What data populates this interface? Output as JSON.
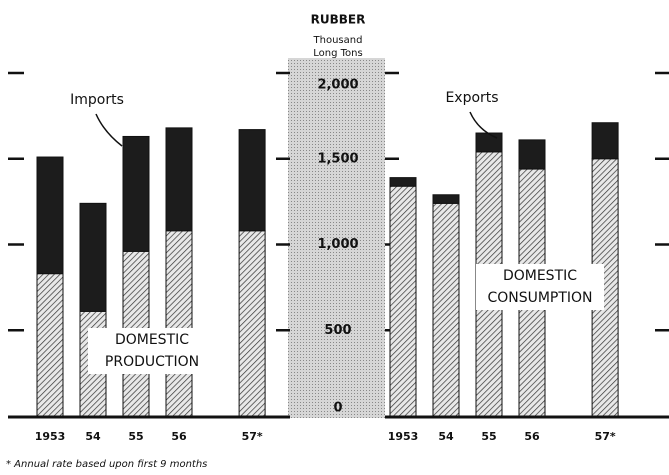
{
  "chart_data": [
    {
      "type": "bar",
      "stacked": true,
      "title": "RUBBER",
      "y_label": [
        "Thousand",
        "Long Tons"
      ],
      "categories": [
        "1953",
        "54",
        "55",
        "56",
        "57*"
      ],
      "series": [
        {
          "name": "DOMESTIC PRODUCTION",
          "label_lines": [
            "DOMESTIC",
            "PRODUCTION"
          ],
          "color": "#9a9a9a",
          "hatch": true,
          "values": [
            830,
            610,
            960,
            1080,
            1080
          ]
        },
        {
          "name": "Imports",
          "color": "#1c1c1c",
          "hatch": false,
          "values": [
            680,
            630,
            670,
            600,
            590
          ]
        }
      ],
      "ylim": [
        0,
        2000
      ],
      "yticks": [
        0,
        500,
        {
          "value": 1000,
          "label": "1,000"
        },
        {
          "value": 1500,
          "label": "1,500"
        },
        {
          "value": 2000,
          "label": "2,000"
        }
      ],
      "footnote": "* Annual rate based upon first 9 months"
    },
    {
      "type": "bar",
      "stacked": true,
      "categories": [
        "1953",
        "54",
        "55",
        "56",
        "57*"
      ],
      "series": [
        {
          "name": "DOMESTIC CONSUMPTION",
          "label_lines": [
            "DOMESTIC",
            "CONSUMPTION"
          ],
          "color": "#9a9a9a",
          "hatch": true,
          "values": [
            1340,
            1240,
            1540,
            1440,
            1500
          ]
        },
        {
          "name": "Exports",
          "color": "#1c1c1c",
          "hatch": false,
          "values": [
            50,
            50,
            110,
            170,
            210
          ]
        }
      ],
      "ylim": [
        0,
        2000
      ],
      "yticks": [
        0,
        500,
        {
          "value": 1000,
          "label": "1,000"
        },
        {
          "value": 1500,
          "label": "1,500"
        },
        {
          "value": 2000,
          "label": "2,000"
        }
      ]
    }
  ]
}
